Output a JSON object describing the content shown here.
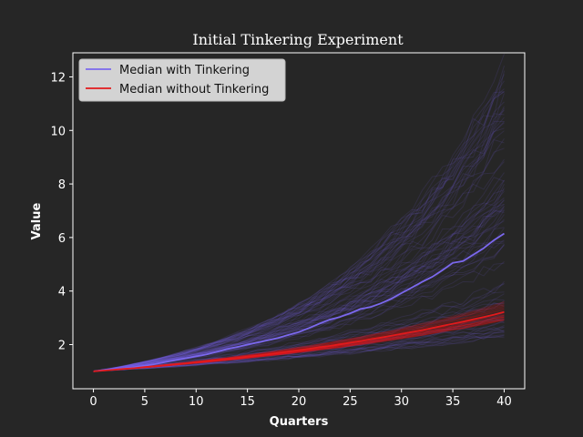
{
  "chart_data": {
    "type": "line",
    "title": "Initial Tinkering Experiment",
    "xlabel": "Quarters",
    "ylabel": "Value",
    "xlim": [
      -2,
      42
    ],
    "ylim": [
      0.35,
      12.9
    ],
    "xticks": [
      0,
      5,
      10,
      15,
      20,
      25,
      30,
      35,
      40
    ],
    "yticks": [
      2,
      4,
      6,
      8,
      10,
      12
    ],
    "grid": false,
    "legend_position": "top-left",
    "colors": {
      "background": "#262626",
      "axes_edge": "#ffffff",
      "with_tinkering": "#7b68ee",
      "without_tinkering": "#e31a1c",
      "legend_bg": "#d3d3d3"
    },
    "x": [
      0,
      1,
      2,
      3,
      4,
      5,
      6,
      7,
      8,
      9,
      10,
      11,
      12,
      13,
      14,
      15,
      16,
      17,
      18,
      19,
      20,
      21,
      22,
      23,
      24,
      25,
      26,
      27,
      28,
      29,
      30,
      31,
      32,
      33,
      34,
      35,
      36,
      37,
      38,
      39,
      40
    ],
    "series": [
      {
        "name": "Median with Tinkering",
        "color": "#7b68ee",
        "values": [
          1.0,
          1.05,
          1.08,
          1.11,
          1.16,
          1.21,
          1.27,
          1.35,
          1.42,
          1.49,
          1.56,
          1.63,
          1.73,
          1.83,
          1.91,
          2.0,
          2.08,
          2.16,
          2.25,
          2.36,
          2.47,
          2.62,
          2.78,
          2.93,
          3.03,
          3.17,
          3.33,
          3.4,
          3.54,
          3.71,
          3.92,
          4.13,
          4.34,
          4.53,
          4.78,
          5.05,
          5.12,
          5.36,
          5.6,
          5.9,
          6.15
        ]
      },
      {
        "name": "Median without Tinkering",
        "color": "#e31a1c",
        "values": [
          1.0,
          1.03,
          1.06,
          1.09,
          1.12,
          1.16,
          1.19,
          1.23,
          1.26,
          1.3,
          1.34,
          1.38,
          1.42,
          1.46,
          1.5,
          1.55,
          1.59,
          1.64,
          1.69,
          1.74,
          1.79,
          1.84,
          1.9,
          1.95,
          2.01,
          2.07,
          2.13,
          2.2,
          2.26,
          2.33,
          2.4,
          2.47,
          2.54,
          2.62,
          2.7,
          2.78,
          2.86,
          2.95,
          3.03,
          3.12,
          3.22
        ]
      }
    ],
    "simulation_bands": {
      "with_tinkering_final_range": [
        2.3,
        12.4
      ],
      "without_tinkering_final_range": [
        2.9,
        3.6
      ]
    }
  }
}
